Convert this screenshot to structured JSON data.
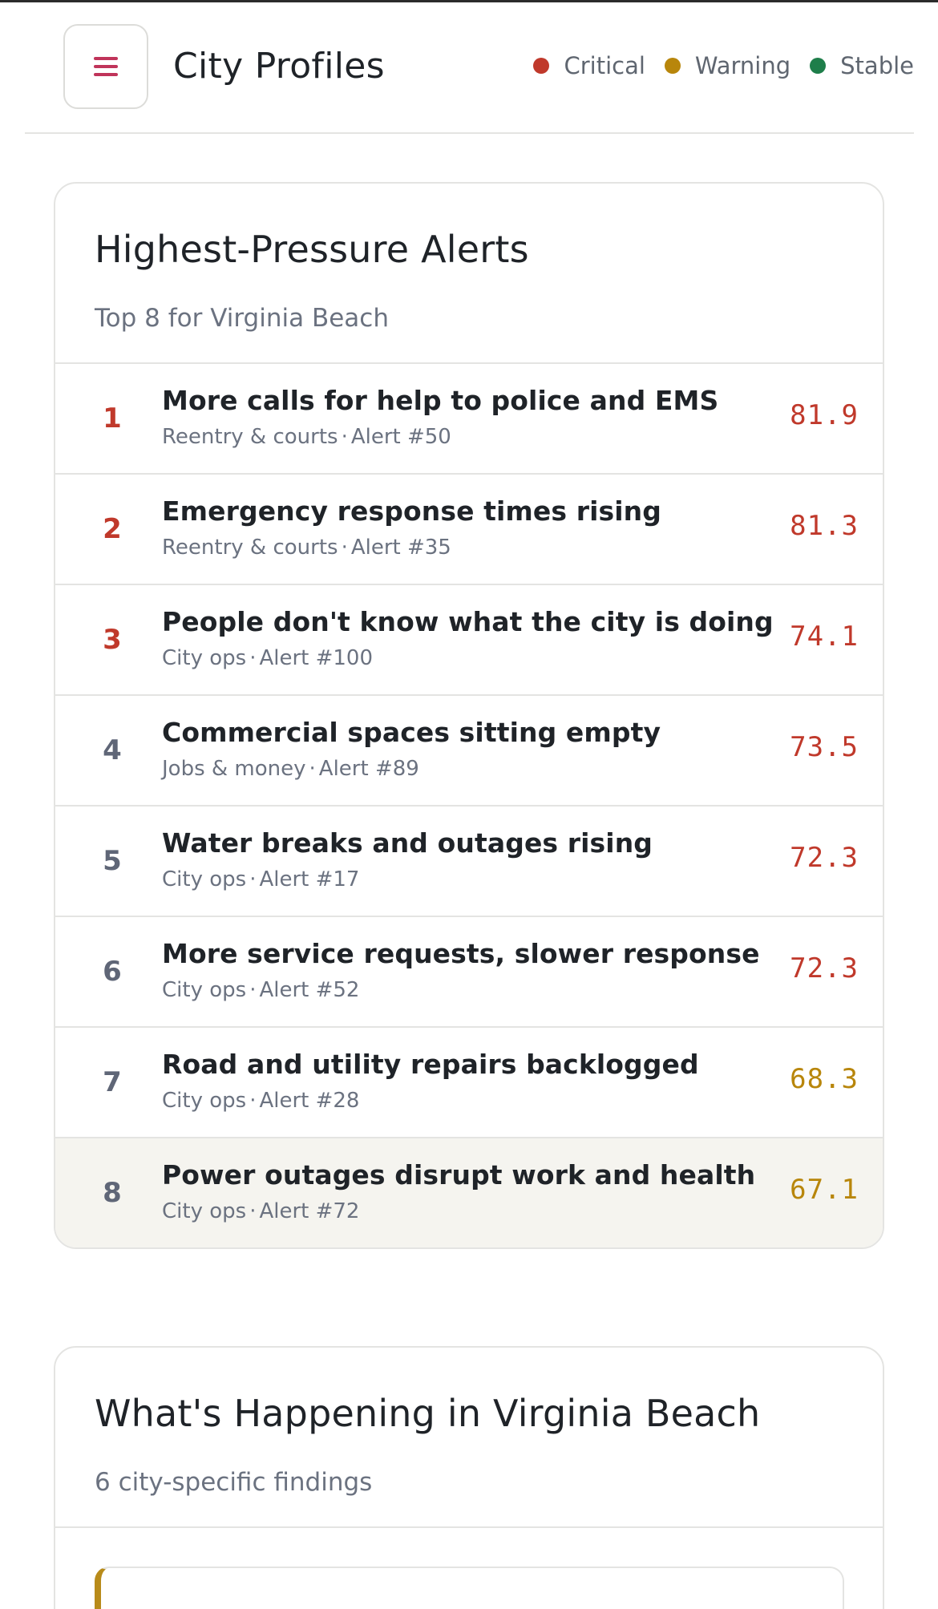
{
  "header": {
    "title": "City Profiles",
    "legend": [
      {
        "label": "Critical",
        "color": "#c0392b"
      },
      {
        "label": "Warning",
        "color": "#b8860b"
      },
      {
        "label": "Stable",
        "color": "#1e7e4a"
      }
    ]
  },
  "alerts_card": {
    "title": "Highest-Pressure Alerts",
    "subtitle": "Top 8 for Virginia Beach",
    "items": [
      {
        "rank": "1",
        "title": "More calls for help to police and EMS",
        "category": "Reentry & courts",
        "alert_id": "Alert #50",
        "score": "81.9",
        "status": "critical"
      },
      {
        "rank": "2",
        "title": "Emergency response times rising",
        "category": "Reentry & courts",
        "alert_id": "Alert #35",
        "score": "81.3",
        "status": "critical"
      },
      {
        "rank": "3",
        "title": "People don't know what the city is doing",
        "category": "City ops",
        "alert_id": "Alert #100",
        "score": "74.1",
        "status": "critical"
      },
      {
        "rank": "4",
        "title": "Commercial spaces sitting empty",
        "category": "Jobs & money",
        "alert_id": "Alert #89",
        "score": "73.5",
        "status": "critical"
      },
      {
        "rank": "5",
        "title": "Water breaks and outages rising",
        "category": "City ops",
        "alert_id": "Alert #17",
        "score": "72.3",
        "status": "critical"
      },
      {
        "rank": "6",
        "title": "More service requests, slower response",
        "category": "City ops",
        "alert_id": "Alert #52",
        "score": "72.3",
        "status": "critical"
      },
      {
        "rank": "7",
        "title": "Road and utility repairs backlogged",
        "category": "City ops",
        "alert_id": "Alert #28",
        "score": "68.3",
        "status": "warning"
      },
      {
        "rank": "8",
        "title": "Power outages disrupt work and health",
        "category": "City ops",
        "alert_id": "Alert #72",
        "score": "67.1",
        "status": "warning"
      }
    ]
  },
  "findings_card": {
    "title": "What's Happening in Virginia Beach",
    "subtitle": "6 city-specific findings"
  },
  "colors": {
    "critical": "#c0392b",
    "warning": "#b8860b",
    "rank_critical": "#c0392b",
    "rank_other": "#5f6677",
    "menu_accent": "#c0345a"
  }
}
